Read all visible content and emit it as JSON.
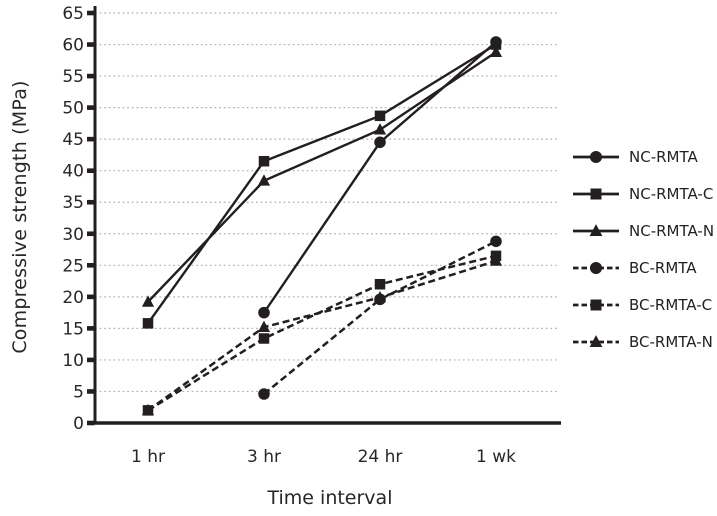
{
  "chart_data": {
    "type": "line",
    "title": "",
    "xlabel": "Time interval",
    "ylabel": "Compressive strength (MPa)",
    "ylim": [
      0,
      65
    ],
    "ytick_step": 5,
    "ytick_labels": [
      "0",
      "5",
      "10",
      "15",
      "20",
      "25",
      "30",
      "35",
      "40",
      "45",
      "50",
      "55",
      "60",
      "65"
    ],
    "grid": "horizontal-dotted",
    "legend_position": "right",
    "categories": [
      "1 hr",
      "3 hr",
      "24 hr",
      "1 wk"
    ],
    "series": [
      {
        "name": "NC-RMTA",
        "marker": "circle",
        "line": "solid",
        "values": [
          null,
          17.5,
          44.5,
          60.4
        ]
      },
      {
        "name": "NC-RMTA-C",
        "marker": "square",
        "line": "solid",
        "values": [
          15.8,
          41.5,
          48.7,
          60.0
        ]
      },
      {
        "name": "NC-RMTA-N",
        "marker": "triangle",
        "line": "solid",
        "values": [
          19.2,
          38.4,
          46.5,
          58.8
        ]
      },
      {
        "name": "BC-RMTA",
        "marker": "circle",
        "line": "dashed",
        "values": [
          null,
          4.6,
          19.6,
          28.8
        ]
      },
      {
        "name": "BC-RMTA-C",
        "marker": "square",
        "line": "dashed",
        "values": [
          2.0,
          13.4,
          22.0,
          26.5
        ]
      },
      {
        "name": "BC-RMTA-N",
        "marker": "triangle",
        "line": "dashed",
        "values": [
          2.0,
          15.2,
          19.9,
          25.7
        ]
      }
    ],
    "colors": {
      "ink": "#231f20",
      "grid": "#b3b3b3",
      "background": "#ffffff"
    }
  }
}
